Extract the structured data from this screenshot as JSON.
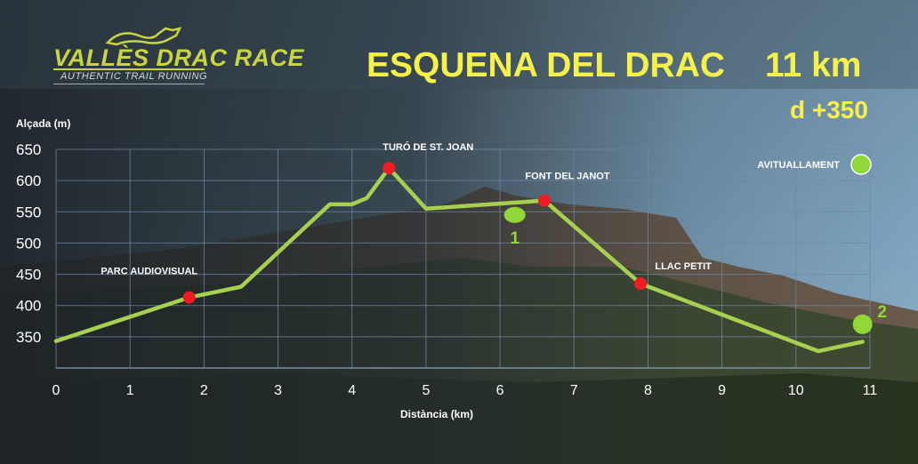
{
  "header": {
    "logo_main": "VALLÈS DRAC RACE",
    "logo_sub": "AUTHENTIC TRAIL RUNNING",
    "title": "ESQUENA DEL DRAC",
    "distance": "11 km",
    "elevation_gain": "d +350"
  },
  "chart_data": {
    "type": "line",
    "title": "ESQUENA DEL DRAC",
    "xlabel": "Distància (km)",
    "ylabel": "Alçada (m)",
    "xlim": [
      0,
      11
    ],
    "ylim": [
      300,
      650
    ],
    "xticks": [
      0,
      1,
      2,
      3,
      4,
      5,
      6,
      7,
      8,
      9,
      10,
      11
    ],
    "yticks": [
      350,
      400,
      450,
      500,
      550,
      600,
      650
    ],
    "grid": true,
    "line_color": "#a8d050",
    "series": [
      {
        "x": [
          0,
          1.8,
          2.5,
          3.7,
          4.0,
          4.2,
          4.5,
          5.0,
          6.6,
          7.9,
          10.3,
          10.9
        ],
        "y": [
          343,
          413,
          430,
          562,
          562,
          572,
          620,
          555,
          568,
          435,
          327,
          342
        ]
      }
    ],
    "waypoints": [
      {
        "name": "PARC AUDIOVISUAL",
        "x": 1.8,
        "y": 413
      },
      {
        "name": "TURÓ DE ST. JOAN",
        "x": 4.5,
        "y": 620
      },
      {
        "name": "FONT DEL JANOT",
        "x": 6.6,
        "y": 568
      },
      {
        "name": "LLAC PETIT",
        "x": 7.9,
        "y": 435
      }
    ],
    "aid_stations": [
      {
        "label": "1",
        "x": 6.2,
        "y": 545
      },
      {
        "label": "2",
        "x": 10.9,
        "y": 370
      }
    ],
    "legend": {
      "label": "AVITUALLAMENT",
      "placement": "top-right"
    },
    "waypoint_color": "#ee1c24",
    "aid_color": "#8fd837"
  }
}
